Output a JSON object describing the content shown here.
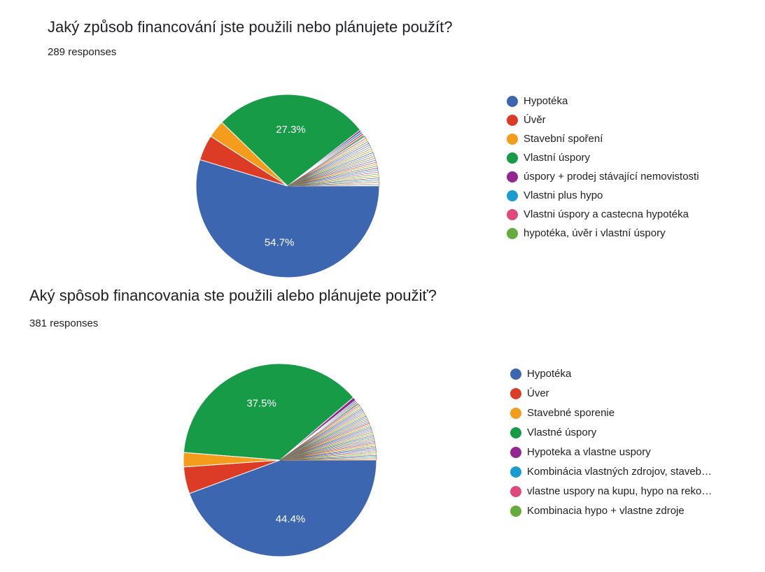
{
  "chart_data": [
    {
      "type": "pie",
      "title": "Jaký způsob financování jste použili nebo plánujete použít?",
      "subtitle": "289 responses",
      "legend_position": "right",
      "start_angle_deg": 90,
      "direction": "clockwise",
      "slices": [
        {
          "label": "Hypotéka",
          "value": 54.7,
          "color": "#3c66b0",
          "show_label": true
        },
        {
          "label": "Úvěr",
          "value": 4.5,
          "color": "#dc3b25",
          "show_label": false
        },
        {
          "label": "Stavební spoření",
          "value": 3.1,
          "color": "#f49c1c",
          "show_label": false
        },
        {
          "label": "Vlastní úspory",
          "value": 27.3,
          "color": "#189b47",
          "show_label": true
        },
        {
          "label": "úspory + prodej stávající nemovistosti",
          "value": 0.35,
          "color": "#93278f",
          "show_label": false
        },
        {
          "label": "Vlastni plus hypo",
          "value": 0.35,
          "color": "#1b9cd0",
          "show_label": false
        },
        {
          "label": "Vlastni úspory a castecna hypotéka",
          "value": 0.35,
          "color": "#e04a7a",
          "show_label": false
        },
        {
          "label": "hypotéka, úvěr i vlastní úspory",
          "value": 0.35,
          "color": "#66ab3e",
          "show_label": false
        }
      ],
      "other_small_slices": {
        "count": 26,
        "value_each": 0.35
      }
    },
    {
      "type": "pie",
      "title": "Aký spôsob financovania ste použili alebo plánujete použiť?",
      "subtitle": "381 responses",
      "legend_position": "right",
      "start_angle_deg": 90,
      "direction": "clockwise",
      "slices": [
        {
          "label": "Hypotéka",
          "value": 44.4,
          "color": "#3c66b0",
          "show_label": true
        },
        {
          "label": "Úver",
          "value": 4.5,
          "color": "#dc3b25",
          "show_label": false
        },
        {
          "label": "Stavebné sporenie",
          "value": 2.4,
          "color": "#f49c1c",
          "show_label": false
        },
        {
          "label": "Vlastné úspory",
          "value": 37.5,
          "color": "#189b47",
          "show_label": true
        },
        {
          "label": "Hypoteka a vlastne uspory",
          "value": 0.6,
          "color": "#93278f",
          "show_label": false
        },
        {
          "label": "Kombinácia vlastných zdrojov, staveb…",
          "value": 0.26,
          "color": "#1b9cd0",
          "show_label": false
        },
        {
          "label": "vlastne uspory na kupu, hypo na reko…",
          "value": 0.26,
          "color": "#e04a7a",
          "show_label": false
        },
        {
          "label": "Kombinacia hypo + vlastne zdroje",
          "value": 0.26,
          "color": "#66ab3e",
          "show_label": false
        }
      ],
      "other_small_slices": {
        "count": 38,
        "value_each": 0.26
      }
    }
  ]
}
